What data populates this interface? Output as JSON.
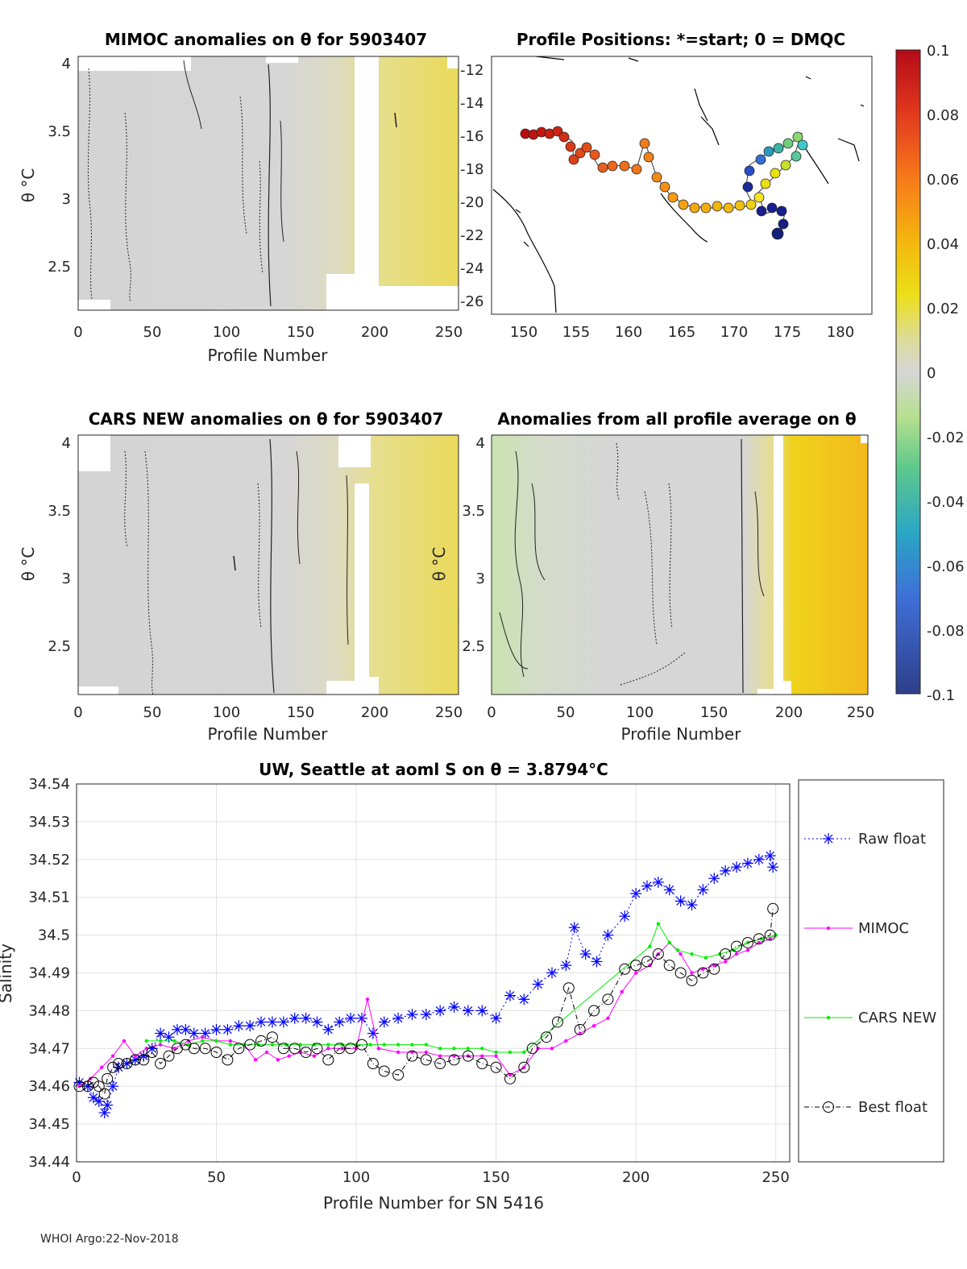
{
  "figure": {
    "footer": "WHOI Argo:22-Nov-2018",
    "colorbar": {
      "ticks": [
        "0.1",
        "0.08",
        "0.06",
        "0.04",
        "0.02",
        "0",
        "-0.02",
        "-0.04",
        "-0.06",
        "-0.08",
        "-0.1"
      ]
    }
  },
  "panels": {
    "mimoc": {
      "title": "MIMOC anomalies on θ  for 5903407",
      "xlabel": "Profile Number",
      "ylabel": "θ °C",
      "xticks": [
        "0",
        "50",
        "100",
        "150",
        "200",
        "250"
      ],
      "yticks": [
        "4",
        "3.5",
        "3",
        "2.5"
      ]
    },
    "map": {
      "title": "Profile Positions: *=start; 0 = DMQC",
      "xticks": [
        "150",
        "155",
        "160",
        "165",
        "170",
        "175",
        "180"
      ],
      "yticks": [
        "-12",
        "-14",
        "-16",
        "-18",
        "-20",
        "-22",
        "-24",
        "-26"
      ]
    },
    "cars": {
      "title": "CARS NEW anomalies on θ for 5903407",
      "xlabel": "Profile Number",
      "ylabel": "θ °C",
      "xticks": [
        "0",
        "50",
        "100",
        "150",
        "200",
        "250"
      ],
      "yticks": [
        "4",
        "3.5",
        "3",
        "2.5"
      ]
    },
    "avg": {
      "title": "Anomalies from all profile average on θ",
      "xlabel": "Profile Number",
      "ylabel": "θ °C",
      "xticks": [
        "0",
        "50",
        "100",
        "150",
        "200",
        "250"
      ],
      "yticks": [
        "4",
        "3.5",
        "3",
        "2.5"
      ]
    }
  },
  "chart_data": {
    "type": "line",
    "title": "UW, Seattle at aoml S on θ = 3.8794°C",
    "xlabel": "Profile Number for SN 5416",
    "ylabel": "Salinity",
    "xlim": [
      0,
      255
    ],
    "ylim": [
      34.44,
      34.54
    ],
    "xticks": [
      "0",
      "50",
      "100",
      "150",
      "200",
      "250"
    ],
    "yticks": [
      "34.54",
      "34.53",
      "34.52",
      "34.51",
      "34.5",
      "34.49",
      "34.48",
      "34.47",
      "34.46",
      "34.45",
      "34.44"
    ],
    "grid": true,
    "legend_position": "outside-right",
    "series": [
      {
        "name": "Raw float",
        "color": "#0000ff",
        "marker": "star",
        "x": [
          1,
          4,
          6,
          8,
          10,
          11,
          13,
          15,
          18,
          21,
          24,
          27,
          30,
          33,
          36,
          39,
          42,
          46,
          50,
          54,
          58,
          62,
          66,
          70,
          74,
          78,
          82,
          86,
          90,
          94,
          98,
          102,
          106,
          110,
          115,
          120,
          125,
          130,
          135,
          140,
          145,
          150,
          155,
          160,
          165,
          170,
          175,
          178,
          182,
          186,
          190,
          196,
          200,
          204,
          208,
          212,
          216,
          220,
          224,
          228,
          232,
          236,
          240,
          244,
          248,
          249
        ],
        "y": [
          34.461,
          34.46,
          34.457,
          34.456,
          34.453,
          34.455,
          34.46,
          34.465,
          34.466,
          34.467,
          34.468,
          34.47,
          34.474,
          34.473,
          34.475,
          34.475,
          34.474,
          34.474,
          34.475,
          34.475,
          34.476,
          34.476,
          34.477,
          34.477,
          34.477,
          34.478,
          34.478,
          34.477,
          34.475,
          34.477,
          34.478,
          34.478,
          34.474,
          34.477,
          34.478,
          34.479,
          34.479,
          34.48,
          34.481,
          34.48,
          34.48,
          34.478,
          34.484,
          34.483,
          34.487,
          34.49,
          34.492,
          34.502,
          34.495,
          34.493,
          34.5,
          34.505,
          34.511,
          34.513,
          34.514,
          34.512,
          34.509,
          34.508,
          34.512,
          34.515,
          34.517,
          34.518,
          34.519,
          34.52,
          34.521,
          34.518
        ]
      },
      {
        "name": "MIMOC",
        "color": "#ff00ff",
        "marker": "dot",
        "x": [
          1,
          5,
          9,
          13,
          17,
          21,
          25,
          30,
          35,
          40,
          45,
          50,
          55,
          60,
          64,
          68,
          72,
          76,
          80,
          85,
          90,
          95,
          100,
          104,
          108,
          115,
          120,
          125,
          130,
          135,
          140,
          145,
          150,
          155,
          160,
          165,
          170,
          175,
          180,
          185,
          190,
          195,
          200,
          205,
          208,
          212,
          216,
          220,
          224,
          228,
          232,
          236,
          240,
          244,
          248,
          250
        ],
        "y": [
          34.46,
          34.462,
          34.465,
          34.468,
          34.472,
          34.468,
          34.47,
          34.471,
          34.47,
          34.472,
          34.473,
          34.472,
          34.472,
          34.471,
          34.467,
          34.469,
          34.467,
          34.468,
          34.469,
          34.468,
          34.47,
          34.47,
          34.47,
          34.483,
          34.47,
          34.469,
          34.469,
          34.469,
          34.468,
          34.468,
          34.468,
          34.468,
          34.468,
          34.463,
          34.465,
          34.47,
          34.47,
          34.472,
          34.474,
          34.476,
          34.478,
          34.485,
          34.49,
          34.492,
          34.495,
          34.498,
          34.495,
          34.49,
          34.491,
          34.492,
          34.493,
          34.495,
          34.496,
          34.498,
          34.499,
          34.5
        ]
      },
      {
        "name": "CARS NEW",
        "color": "#00ee00",
        "marker": "dot",
        "x": [
          25,
          30,
          35,
          40,
          45,
          50,
          55,
          60,
          65,
          70,
          75,
          80,
          85,
          90,
          95,
          100,
          105,
          110,
          115,
          120,
          125,
          130,
          135,
          140,
          145,
          150,
          155,
          160,
          205,
          208,
          212,
          215,
          220,
          225,
          230,
          235,
          240,
          245,
          250
        ],
        "y": [
          34.472,
          34.472,
          34.472,
          34.471,
          34.472,
          34.472,
          34.471,
          34.471,
          34.471,
          34.471,
          34.471,
          34.471,
          34.471,
          34.471,
          34.471,
          34.471,
          34.471,
          34.471,
          34.471,
          34.471,
          34.471,
          34.47,
          34.47,
          34.47,
          34.47,
          34.469,
          34.469,
          34.469,
          34.497,
          34.503,
          34.498,
          34.496,
          34.495,
          34.494,
          34.495,
          34.496,
          34.498,
          34.499,
          34.5
        ]
      },
      {
        "name": "Best float",
        "color": "#000000",
        "marker": "circle",
        "x": [
          1,
          4,
          6,
          8,
          10,
          11,
          13,
          15,
          18,
          21,
          24,
          27,
          30,
          33,
          36,
          39,
          42,
          46,
          50,
          54,
          58,
          62,
          66,
          70,
          74,
          78,
          82,
          86,
          90,
          94,
          98,
          102,
          106,
          110,
          115,
          120,
          125,
          130,
          135,
          140,
          145,
          150,
          155,
          160,
          163,
          168,
          172,
          176,
          180,
          185,
          190,
          196,
          200,
          204,
          208,
          212,
          216,
          220,
          224,
          228,
          232,
          236,
          240,
          244,
          248,
          249
        ],
        "y": [
          34.46,
          34.46,
          34.461,
          34.46,
          34.458,
          34.462,
          34.465,
          34.466,
          34.466,
          34.467,
          34.467,
          34.469,
          34.466,
          34.468,
          34.47,
          34.471,
          34.47,
          34.47,
          34.469,
          34.467,
          34.47,
          34.471,
          34.472,
          34.473,
          34.47,
          34.47,
          34.469,
          34.47,
          34.467,
          34.47,
          34.47,
          34.471,
          34.466,
          34.464,
          34.463,
          34.468,
          34.467,
          34.466,
          34.467,
          34.468,
          34.466,
          34.465,
          34.462,
          34.465,
          34.47,
          34.473,
          34.477,
          34.486,
          34.475,
          34.48,
          34.483,
          34.491,
          34.492,
          34.493,
          34.495,
          34.492,
          34.49,
          34.488,
          34.49,
          34.491,
          34.495,
          34.497,
          34.498,
          34.499,
          34.5,
          34.507
        ]
      }
    ]
  }
}
